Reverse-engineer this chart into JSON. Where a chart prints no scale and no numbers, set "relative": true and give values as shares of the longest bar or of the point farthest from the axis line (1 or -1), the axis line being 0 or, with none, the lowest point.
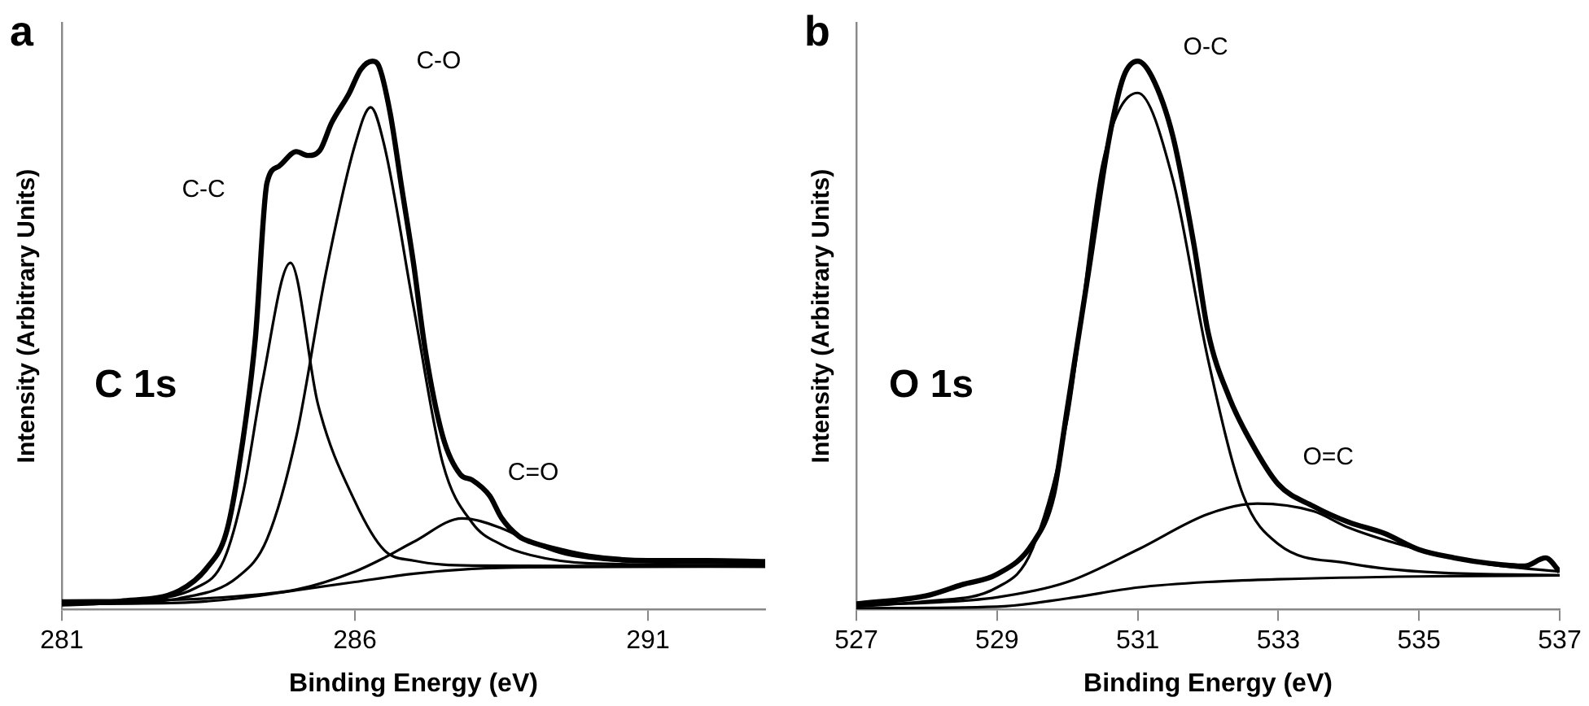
{
  "chart_data": [
    {
      "type": "line",
      "title": "a",
      "xlabel": "Binding Energy (eV)",
      "ylabel": "Intensity (Arbitrary Units)",
      "relative": true,
      "xlim": [
        281,
        293
      ],
      "xticks": [
        281,
        286,
        291
      ],
      "tick_labels": "x",
      "grid": false,
      "legend": false,
      "annotations": [
        "C 1s",
        "C-C",
        "C-O",
        "C=O"
      ],
      "series": [
        {
          "color": "#000000",
          "x": [
            281,
            282,
            283,
            283.5,
            283.8,
            284,
            284.3,
            284.5,
            284.7,
            285,
            285.2,
            285.4,
            285.6,
            285.9,
            286.1,
            286.3,
            286.4,
            286.6,
            286.8,
            287,
            287.2,
            287.5,
            287.8,
            288,
            288.3,
            288.5,
            288.8,
            289,
            289.5,
            290,
            291,
            292,
            293
          ],
          "values": [
            0.01,
            0.015,
            0.034,
            0.079,
            0.138,
            0.246,
            0.493,
            0.778,
            0.808,
            0.835,
            0.828,
            0.837,
            0.887,
            0.941,
            0.985,
            1.0,
            0.993,
            0.906,
            0.768,
            0.631,
            0.473,
            0.315,
            0.246,
            0.236,
            0.207,
            0.167,
            0.133,
            0.123,
            0.108,
            0.097,
            0.089,
            0.089,
            0.087
          ]
        },
        {
          "color": "#000000",
          "x": [
            281,
            282,
            283.3,
            283.76,
            284.1,
            284.42,
            284.9,
            285.37,
            286,
            286.5,
            287,
            288,
            290,
            293
          ],
          "values": [
            0.01,
            0.015,
            0.04,
            0.089,
            0.217,
            0.414,
            0.632,
            0.374,
            0.197,
            0.108,
            0.089,
            0.08,
            0.079,
            0.078
          ]
        },
        {
          "color": "#000000",
          "x": [
            281,
            282,
            283,
            284,
            284.5,
            285,
            285.5,
            286,
            286.27,
            286.5,
            287,
            287.5,
            288,
            288.5,
            289,
            290,
            293
          ],
          "values": [
            0.01,
            0.012,
            0.02,
            0.059,
            0.128,
            0.315,
            0.611,
            0.847,
            0.916,
            0.847,
            0.552,
            0.266,
            0.158,
            0.118,
            0.099,
            0.084,
            0.08
          ]
        },
        {
          "color": "#000000",
          "x": [
            281,
            283,
            284,
            285,
            286,
            286.5,
            287,
            287.83,
            288.5,
            289,
            289.5,
            290,
            291,
            293
          ],
          "values": [
            0.016,
            0.018,
            0.024,
            0.036,
            0.069,
            0.094,
            0.123,
            0.166,
            0.148,
            0.123,
            0.103,
            0.093,
            0.086,
            0.084
          ]
        },
        {
          "color": "#000000",
          "x": [
            281,
            283,
            284,
            285,
            286,
            287,
            288,
            289,
            293
          ],
          "values": [
            0.01,
            0.012,
            0.02,
            0.035,
            0.05,
            0.065,
            0.074,
            0.077,
            0.078
          ]
        }
      ]
    },
    {
      "type": "line",
      "title": "b",
      "xlabel": "Binding Energy (eV)",
      "ylabel": "Intensity (Arbitrary Units)",
      "relative": true,
      "xlim": [
        527,
        537
      ],
      "xticks": [
        527,
        529,
        531,
        533,
        535,
        537
      ],
      "tick_labels": "x",
      "grid": false,
      "legend": false,
      "annotations": [
        "O 1s",
        "O-C",
        "O=C"
      ],
      "series": [
        {
          "color": "#000000",
          "x": [
            527,
            528,
            528.5,
            529,
            529.5,
            529.8,
            530,
            530.3,
            530.6,
            530.8,
            531,
            531.2,
            531.5,
            531.8,
            532,
            532.3,
            532.6,
            533,
            533.5,
            534,
            534.5,
            535,
            535.5,
            536,
            536.5,
            536.8,
            537
          ],
          "values": [
            0.01,
            0.025,
            0.045,
            0.064,
            0.119,
            0.208,
            0.367,
            0.615,
            0.863,
            0.972,
            1.0,
            0.972,
            0.863,
            0.665,
            0.506,
            0.387,
            0.308,
            0.228,
            0.188,
            0.159,
            0.139,
            0.109,
            0.094,
            0.084,
            0.079,
            0.094,
            0.069
          ]
        },
        {
          "color": "#000000",
          "x": [
            527,
            528,
            529,
            529.5,
            530,
            530.5,
            531,
            531.5,
            532,
            532.5,
            533,
            534,
            535,
            537
          ],
          "values": [
            0.005,
            0.015,
            0.04,
            0.109,
            0.347,
            0.813,
            0.942,
            0.784,
            0.456,
            0.208,
            0.119,
            0.084,
            0.069,
            0.062
          ]
        },
        {
          "color": "#000000",
          "x": [
            527,
            528,
            529,
            530,
            531,
            532,
            532.7,
            533.5,
            534,
            535,
            536,
            537
          ],
          "values": [
            0.009,
            0.012,
            0.022,
            0.05,
            0.109,
            0.174,
            0.193,
            0.179,
            0.149,
            0.109,
            0.082,
            0.069
          ]
        },
        {
          "color": "#000000",
          "x": [
            527,
            529,
            530,
            531,
            532,
            533,
            535,
            537
          ],
          "values": [
            0.002,
            0.005,
            0.02,
            0.04,
            0.05,
            0.055,
            0.06,
            0.062
          ]
        }
      ]
    }
  ]
}
